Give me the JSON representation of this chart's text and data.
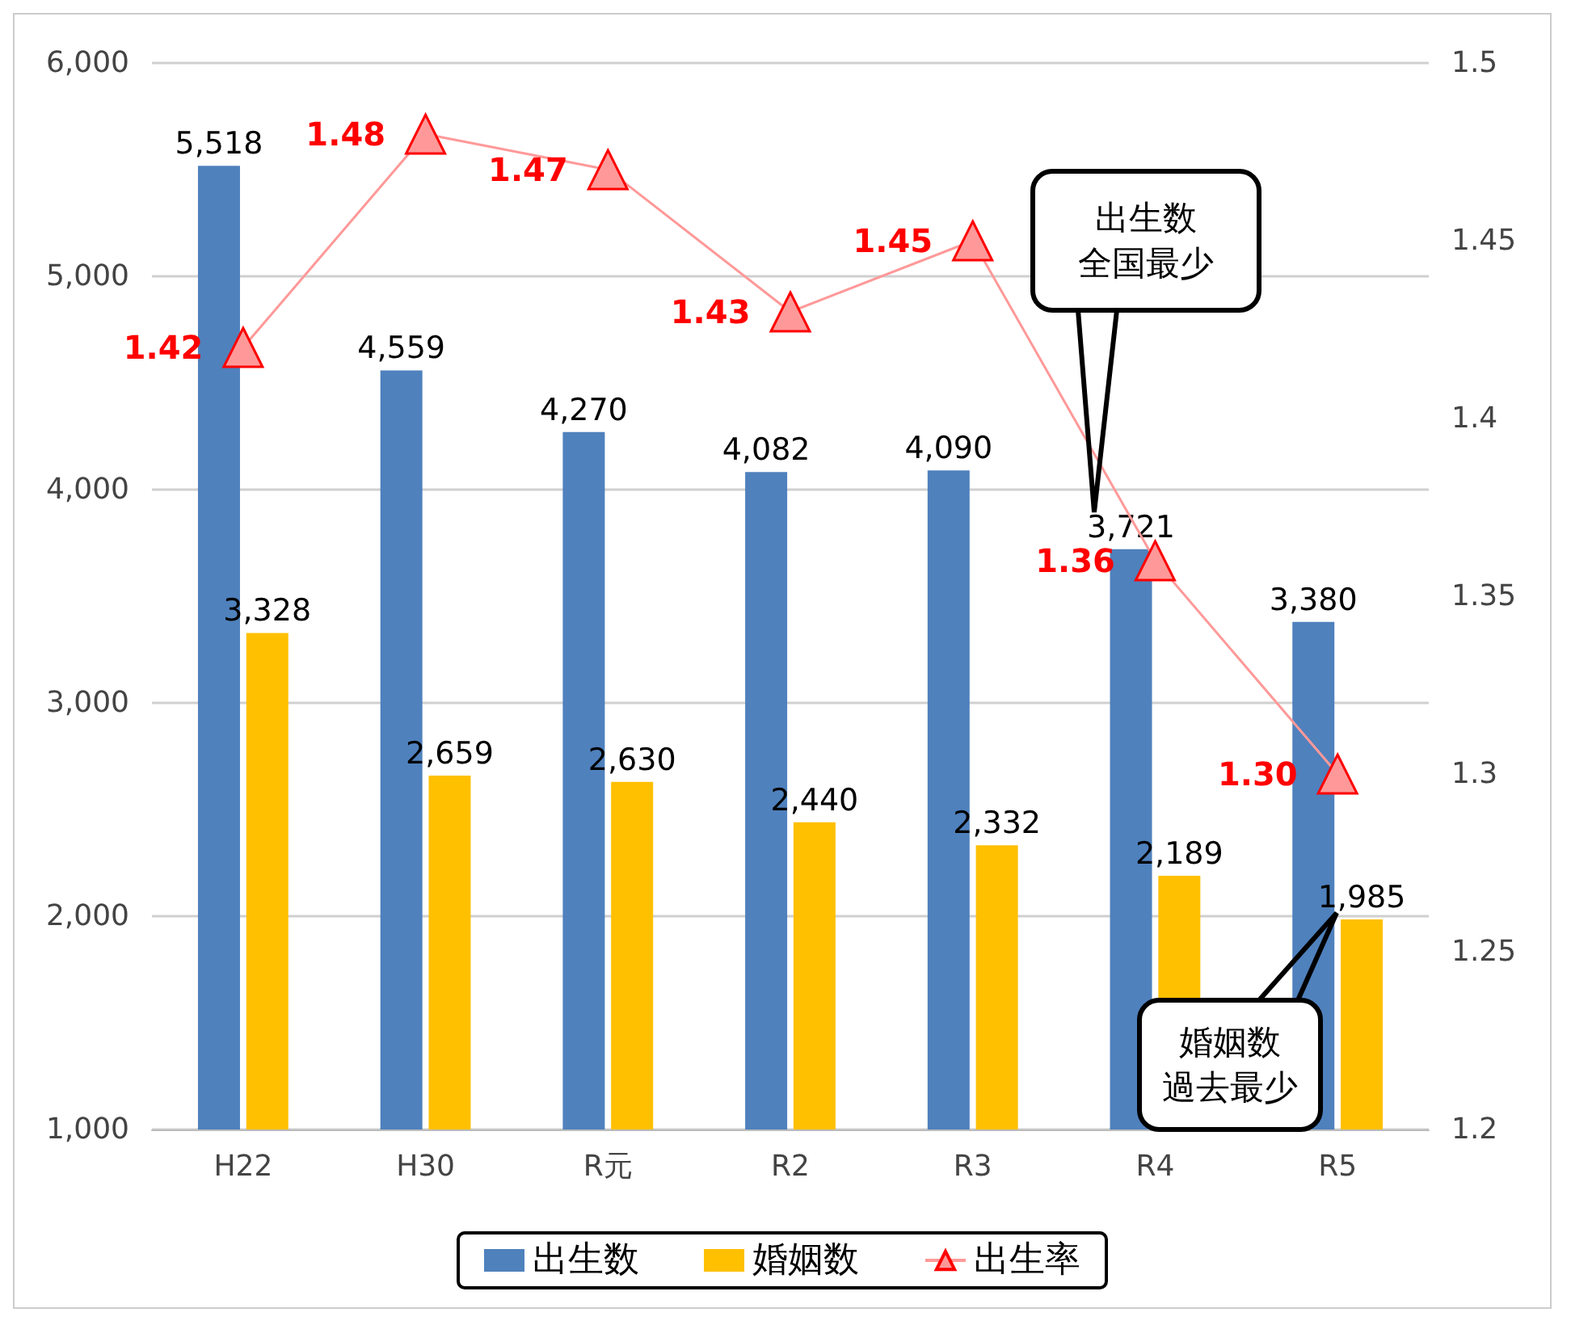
{
  "chart_data": {
    "type": "bar",
    "categories": [
      "H22",
      "H30",
      "R元",
      "R2",
      "R3",
      "R4",
      "R5"
    ],
    "series": [
      {
        "name": "出生数",
        "color": "#4f81bd",
        "values": [
          5518,
          4559,
          4270,
          4082,
          4090,
          3721,
          3380
        ],
        "value_labels": [
          "5,518",
          "4,559",
          "4,270",
          "4,082",
          "4,090",
          "3,721",
          "3,380"
        ]
      },
      {
        "name": "婚姻数",
        "color": "#ffc000",
        "values": [
          3328,
          2659,
          2630,
          2440,
          2332,
          2189,
          1985
        ],
        "value_labels": [
          "3,328",
          "2,659",
          "2,630",
          "2,440",
          "2,332",
          "2,189",
          "1,985"
        ]
      },
      {
        "name": "出生率",
        "type": "line",
        "axis": "y2",
        "color": "#ff9999",
        "values": [
          1.42,
          1.48,
          1.47,
          1.43,
          1.45,
          1.36,
          1.3
        ],
        "value_labels": [
          "1.42",
          "1.48",
          "1.47",
          "1.43",
          "1.45",
          "1.36",
          "1.30"
        ]
      }
    ],
    "ylim": [
      1000,
      6000
    ],
    "yticks": [
      {
        "value": 1000,
        "label": "1,000"
      },
      {
        "value": 2000,
        "label": "2,000"
      },
      {
        "value": 3000,
        "label": "3,000"
      },
      {
        "value": 4000,
        "label": "4,000"
      },
      {
        "value": 5000,
        "label": "5,000"
      },
      {
        "value": 6000,
        "label": "6,000"
      }
    ],
    "y2lim": [
      1.2,
      1.5
    ],
    "y2ticks": [
      1.2,
      1.25,
      1.3,
      1.35,
      1.4,
      1.45,
      1.5
    ],
    "grid": "y",
    "legend": "bottom",
    "marker": "triangle",
    "annotations": [
      "出生数",
      "全国最少",
      "婚姻数",
      "過去最少"
    ]
  }
}
